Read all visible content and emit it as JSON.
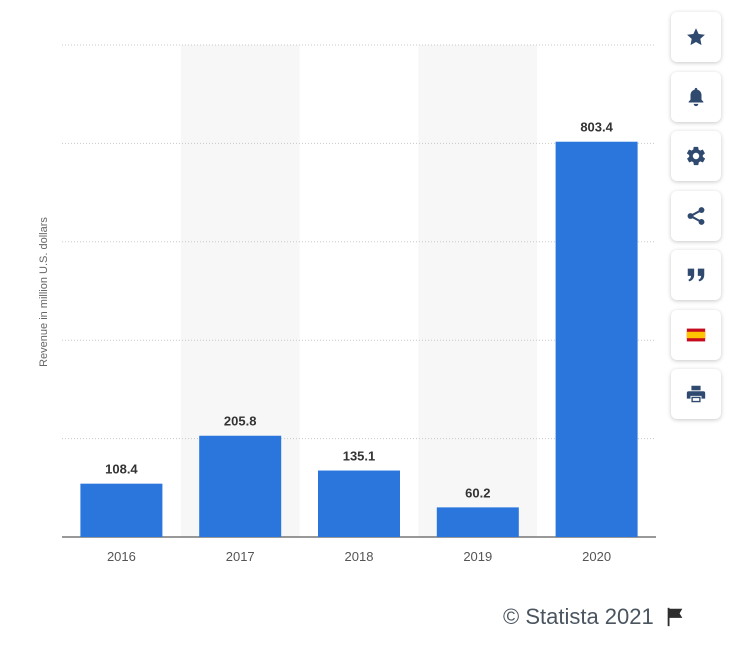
{
  "chart_data": {
    "type": "bar",
    "categories": [
      "2016",
      "2017",
      "2018",
      "2019",
      "2020"
    ],
    "values": [
      108.4,
      205.8,
      135.1,
      60.2,
      803.4
    ],
    "value_labels": [
      "108.4",
      "205.8",
      "135.1",
      "60.2",
      "803.4"
    ],
    "ylabel": "Revenue in million U.S. dollars",
    "xlabel": "",
    "ylim": [
      0,
      1000
    ],
    "yticks": [
      0,
      200,
      400,
      600,
      800,
      1000
    ],
    "grid": "horizontal dotted",
    "bar_color": "#2a76dd",
    "alt_band_color": "#f7f7f7"
  },
  "toolbar": {
    "items": [
      {
        "name": "favorite-star-icon",
        "icon": "star"
      },
      {
        "name": "notification-bell-icon",
        "icon": "bell"
      },
      {
        "name": "settings-gear-icon",
        "icon": "gear"
      },
      {
        "name": "share-icon",
        "icon": "share"
      },
      {
        "name": "cite-quote-icon",
        "icon": "quote"
      },
      {
        "name": "language-flag-spain-icon",
        "icon": "flag-es"
      },
      {
        "name": "print-icon",
        "icon": "printer"
      }
    ],
    "icon_color": "#2f4a6e"
  },
  "footer": {
    "copyright": "© Statista 2021",
    "flag_icon": "report-flag-icon"
  }
}
